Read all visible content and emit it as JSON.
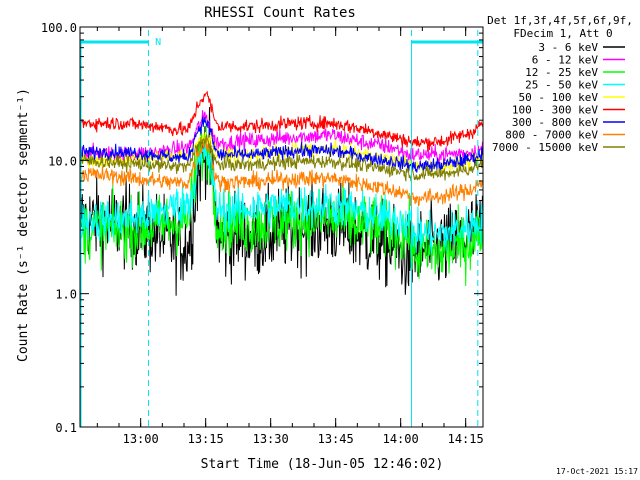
{
  "chart_data": {
    "type": "line",
    "title": "RHESSI Count Rates",
    "xlabel": "Start Time (18-Jun-05 12:46:02)",
    "ylabel": "Count Rate (s⁻¹ detector segment⁻¹)",
    "y_scale": "log",
    "ylim": [
      0.1,
      100.0
    ],
    "y_ticks": [
      "0.1",
      "1.0",
      "10.0",
      "100.0"
    ],
    "x_range_min": [
      0,
      93
    ],
    "x_ticks": [
      {
        "label": "13:00",
        "min": 14
      },
      {
        "label": "13:15",
        "min": 29
      },
      {
        "label": "13:30",
        "min": 44
      },
      {
        "label": "13:45",
        "min": 59
      },
      {
        "label": "14:00",
        "min": 74
      },
      {
        "label": "14:15",
        "min": 89
      }
    ],
    "grid": false,
    "legend_header": [
      "Det 1f,3f,4f,5f,6f,9f,",
      "FDecim 1, Att 0"
    ],
    "legend_position": "right",
    "night_marker_label": "N",
    "footer_date": "17-Oct-2021 15:17",
    "series": [
      {
        "name": "3 - 6 keV",
        "color": "#000000",
        "noise": 0.3,
        "x": [
          0,
          10,
          18,
          22,
          25,
          26,
          27,
          29,
          30,
          31,
          32,
          33,
          34,
          35,
          37,
          40,
          50,
          58,
          62,
          66,
          72,
          76,
          77,
          78,
          84,
          90,
          93
        ],
        "y": [
          3.6,
          3.3,
          2.8,
          2.4,
          2.3,
          3.5,
          7.0,
          13.0,
          10.0,
          4.5,
          2.7,
          2.4,
          2.5,
          2.7,
          2.8,
          2.6,
          3.2,
          3.3,
          3.0,
          2.7,
          2.2,
          1.8,
          2.0,
          2.1,
          2.2,
          2.7,
          3.1
        ]
      },
      {
        "name": "6 - 12 keV",
        "color": "#ff00ff",
        "noise": 0.06,
        "x": [
          0,
          10,
          18,
          22,
          25,
          26,
          27,
          29,
          30,
          31,
          32,
          33,
          34,
          35,
          37,
          40,
          50,
          58,
          62,
          66,
          72,
          76,
          77,
          78,
          84,
          90,
          93
        ],
        "y": [
          11.5,
          11.0,
          11.5,
          12.0,
          12.5,
          14.0,
          17.0,
          22.0,
          18.0,
          14.0,
          13.5,
          13.5,
          13.5,
          13.5,
          14.0,
          14.0,
          15.0,
          15.5,
          14.5,
          13.5,
          12.5,
          11.0,
          11.0,
          11.0,
          11.0,
          11.5,
          12.0
        ]
      },
      {
        "name": "12 - 25 keV",
        "color": "#00ff00",
        "noise": 0.22,
        "x": [
          0,
          10,
          18,
          22,
          25,
          26,
          27,
          29,
          30,
          31,
          32,
          33,
          34,
          35,
          37,
          40,
          50,
          58,
          62,
          66,
          72,
          76,
          77,
          78,
          84,
          90,
          93
        ],
        "y": [
          3.0,
          3.0,
          3.2,
          3.4,
          3.6,
          5.5,
          9.0,
          13.0,
          11.0,
          5.0,
          3.4,
          3.4,
          3.4,
          3.4,
          3.3,
          3.3,
          3.6,
          3.6,
          3.4,
          3.2,
          3.0,
          2.7,
          1.9,
          2.0,
          2.0,
          2.4,
          3.0
        ]
      },
      {
        "name": "25 - 50 keV",
        "color": "#00ffff",
        "noise": 0.15,
        "x": [
          0,
          10,
          18,
          22,
          25,
          26,
          27,
          29,
          30,
          31,
          32,
          33,
          34,
          35,
          37,
          40,
          50,
          58,
          62,
          66,
          72,
          76,
          77,
          78,
          84,
          90,
          93
        ],
        "y": [
          3.6,
          3.6,
          4.0,
          4.6,
          4.8,
          6.0,
          8.5,
          11.5,
          9.5,
          5.5,
          4.3,
          4.3,
          4.3,
          4.3,
          4.3,
          4.4,
          4.6,
          4.6,
          4.4,
          4.0,
          3.7,
          3.5,
          2.8,
          2.8,
          2.8,
          3.2,
          3.6
        ]
      },
      {
        "name": "50 - 100 keV",
        "color": "#ffff00",
        "noise": 0.05,
        "x": [
          0,
          10,
          18,
          22,
          25,
          26,
          27,
          29,
          30,
          31,
          32,
          33,
          34,
          35,
          37,
          40,
          50,
          58,
          62,
          66,
          72,
          76,
          77,
          78,
          84,
          90,
          93
        ],
        "y": [
          10.0,
          10.0,
          10.5,
          11.0,
          11.0,
          12.0,
          13.5,
          15.0,
          14.0,
          12.0,
          11.0,
          11.0,
          11.0,
          11.0,
          11.0,
          11.0,
          12.0,
          12.2,
          11.5,
          11.0,
          10.0,
          9.5,
          9.0,
          9.0,
          9.2,
          9.8,
          10.5
        ]
      },
      {
        "name": "100 - 300 keV",
        "color": "#ff0000",
        "noise": 0.05,
        "x": [
          0,
          10,
          18,
          22,
          25,
          26,
          27,
          29,
          30,
          31,
          32,
          33,
          34,
          35,
          37,
          40,
          50,
          58,
          62,
          66,
          72,
          76,
          77,
          78,
          84,
          90,
          93
        ],
        "y": [
          19.0,
          19.0,
          18.0,
          17.0,
          17.0,
          20.0,
          25.0,
          32.0,
          27.0,
          20.0,
          18.0,
          18.0,
          18.0,
          18.0,
          18.0,
          18.0,
          19.0,
          19.0,
          18.0,
          17.0,
          15.0,
          14.0,
          13.5,
          13.5,
          14.0,
          16.0,
          19.0
        ]
      },
      {
        "name": "300 - 800 keV",
        "color": "#0000ff",
        "noise": 0.05,
        "x": [
          0,
          10,
          18,
          22,
          25,
          26,
          27,
          29,
          30,
          31,
          32,
          33,
          34,
          35,
          37,
          40,
          50,
          58,
          62,
          66,
          72,
          76,
          77,
          78,
          84,
          90,
          93
        ],
        "y": [
          11.5,
          11.5,
          11.0,
          10.5,
          10.5,
          13.0,
          16.5,
          20.0,
          17.0,
          12.5,
          11.0,
          11.0,
          11.0,
          11.0,
          11.0,
          11.0,
          11.8,
          11.8,
          11.3,
          10.5,
          9.8,
          9.2,
          9.0,
          9.0,
          9.3,
          10.2,
          11.2
        ]
      },
      {
        "name": "800 - 7000 keV",
        "color": "#ff8000",
        "noise": 0.06,
        "x": [
          0,
          10,
          18,
          22,
          25,
          26,
          27,
          29,
          30,
          31,
          32,
          33,
          34,
          35,
          37,
          40,
          50,
          58,
          62,
          66,
          72,
          76,
          77,
          78,
          84,
          90,
          93
        ],
        "y": [
          8.0,
          7.5,
          7.0,
          6.8,
          6.8,
          8.5,
          11.0,
          14.0,
          12.0,
          8.0,
          6.8,
          6.8,
          6.9,
          6.9,
          6.9,
          6.9,
          7.3,
          7.3,
          7.0,
          6.6,
          6.0,
          5.5,
          5.2,
          5.2,
          5.4,
          6.0,
          7.0
        ]
      },
      {
        "name": "7000 - 15000 keV",
        "color": "#808000",
        "noise": 0.05,
        "x": [
          0,
          10,
          18,
          22,
          25,
          26,
          27,
          29,
          30,
          31,
          32,
          33,
          34,
          35,
          37,
          40,
          50,
          58,
          62,
          66,
          72,
          76,
          77,
          78,
          84,
          90,
          93
        ],
        "y": [
          10.0,
          9.5,
          9.2,
          9.0,
          9.0,
          10.5,
          12.5,
          15.0,
          13.0,
          10.0,
          9.3,
          9.3,
          9.3,
          9.3,
          9.3,
          9.3,
          9.8,
          9.8,
          9.5,
          9.0,
          8.5,
          8.0,
          7.8,
          7.8,
          8.0,
          8.6,
          9.5
        ]
      }
    ],
    "night_segments_min": [
      [
        0,
        15.8
      ],
      [
        76.5,
        93
      ]
    ],
    "night_boundaries_min": [
      15.8,
      76.5,
      91.8
    ]
  }
}
